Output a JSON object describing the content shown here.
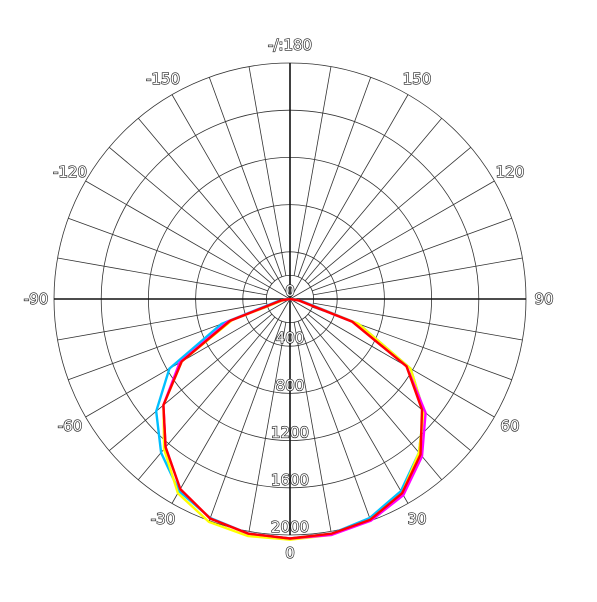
{
  "chart_data": {
    "type": "polar",
    "title": "",
    "angle_labels": [
      {
        "angle": 0,
        "text": "0"
      },
      {
        "angle": 30,
        "text": "30"
      },
      {
        "angle": 60,
        "text": "60"
      },
      {
        "angle": 90,
        "text": "90"
      },
      {
        "angle": 120,
        "text": "120"
      },
      {
        "angle": 150,
        "text": "150"
      },
      {
        "angle": 180,
        "text": "-/:180"
      },
      {
        "angle": -150,
        "text": "-150"
      },
      {
        "angle": -120,
        "text": "-120"
      },
      {
        "angle": -90,
        "text": "-90"
      },
      {
        "angle": -60,
        "text": "-60"
      },
      {
        "angle": -30,
        "text": "-30"
      }
    ],
    "radial_ticks": [
      0,
      400,
      800,
      1200,
      1600,
      2000
    ],
    "radial_tick_labels": [
      "0",
      "400",
      "800",
      "1200",
      "1600",
      "2000"
    ],
    "rmax": 2000,
    "grid": true,
    "series": [
      {
        "color": "#00bfff",
        "angles": [
          -90,
          -80,
          -70,
          -60,
          -50,
          -40,
          -30,
          -20,
          -10,
          0,
          10,
          20,
          30,
          40,
          50,
          60,
          70,
          80,
          90
        ],
        "values": [
          0,
          100,
          620,
          1180,
          1480,
          1700,
          1880,
          1975,
          2020,
          2030,
          2020,
          1975,
          1880,
          1700,
          1480,
          1180,
          620,
          100,
          0
        ]
      },
      {
        "color": "#ffff00",
        "angles": [
          -90,
          -80,
          -70,
          -60,
          -50,
          -40,
          -30,
          -20,
          -10,
          0,
          10,
          20,
          30,
          40,
          50,
          60,
          70,
          80,
          90
        ],
        "values": [
          0,
          60,
          520,
          1060,
          1400,
          1660,
          1900,
          2010,
          2040,
          2040,
          2030,
          1990,
          1900,
          1700,
          1480,
          1180,
          620,
          80,
          0
        ]
      },
      {
        "color": "#ff00ff",
        "angles": [
          -90,
          -80,
          -70,
          -60,
          -50,
          -40,
          -30,
          -20,
          -10,
          0,
          10,
          20,
          30,
          40,
          50,
          60,
          70,
          80,
          90
        ],
        "values": [
          0,
          80,
          560,
          1080,
          1400,
          1640,
          1860,
          1980,
          2020,
          2030,
          2030,
          2000,
          1920,
          1740,
          1500,
          1140,
          560,
          80,
          0
        ]
      },
      {
        "color": "#ff0000",
        "angles": [
          -90,
          -80,
          -70,
          -60,
          -50,
          -40,
          -30,
          -20,
          -10,
          0,
          10,
          20,
          30,
          40,
          50,
          60,
          70,
          80,
          90
        ],
        "values": [
          0,
          80,
          540,
          1060,
          1400,
          1640,
          1860,
          1980,
          2020,
          2030,
          2020,
          1990,
          1900,
          1720,
          1460,
          1140,
          560,
          80,
          0
        ]
      }
    ]
  }
}
